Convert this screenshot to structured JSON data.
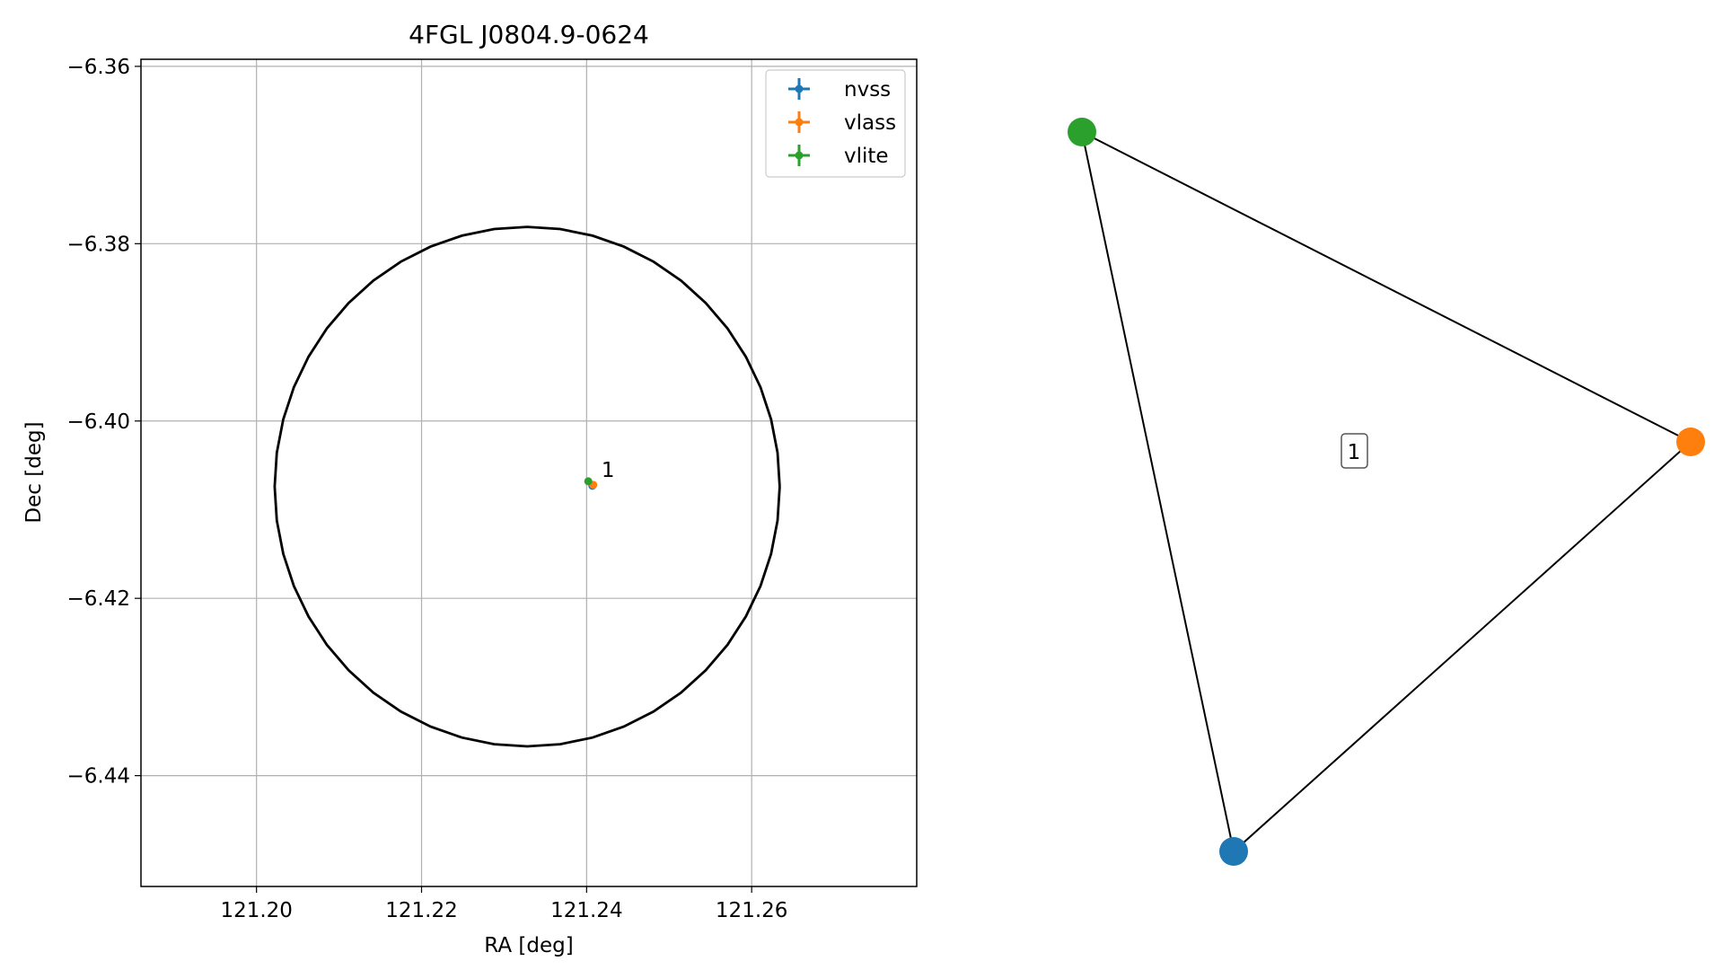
{
  "chart_data": [
    {
      "type": "scatter",
      "title": "4FGL J0804.9-0624",
      "xlabel": "RA [deg]",
      "ylabel": "Dec [deg]",
      "xlim": [
        121.186,
        121.28
      ],
      "ylim": [
        -6.4525,
        -6.3592
      ],
      "xticks": [
        121.2,
        121.22,
        121.24,
        121.26
      ],
      "xtick_labels": [
        "121.20",
        "121.22",
        "121.24",
        "121.26"
      ],
      "yticks": [
        -6.36,
        -6.38,
        -6.4,
        -6.42,
        -6.44
      ],
      "ytick_labels": [
        "−6.36",
        "−6.38",
        "−6.40",
        "−6.42",
        "−6.44"
      ],
      "grid": true,
      "legend_position": "top-right",
      "series": [
        {
          "name": "nvss",
          "color": "#1f77b4",
          "x": [
            121.2407
          ],
          "y": [
            -6.4073
          ]
        },
        {
          "name": "vlass",
          "color": "#ff7f0e",
          "x": [
            121.2408
          ],
          "y": [
            -6.4072
          ]
        },
        {
          "name": "vlite",
          "color": "#2ca02c",
          "x": [
            121.2402
          ],
          "y": [
            -6.4068
          ]
        }
      ],
      "annotations": [
        {
          "text": "1",
          "x": 121.2418,
          "y": -6.4059
        }
      ],
      "ellipse": {
        "center": [
          121.2328,
          -6.4074
        ],
        "semi_axis_ra": 0.0306,
        "semi_axis_dec": 0.0293,
        "color": "#000000"
      }
    },
    {
      "type": "graph",
      "nodes": [
        {
          "id": "nvss",
          "color": "#1f77b4"
        },
        {
          "id": "vlass",
          "color": "#ff7f0e"
        },
        {
          "id": "vlite",
          "color": "#2ca02c"
        }
      ],
      "edges": [
        [
          "vlite",
          "vlass"
        ],
        [
          "vlite",
          "nvss"
        ],
        [
          "nvss",
          "vlass"
        ]
      ],
      "cluster_label": "1"
    }
  ]
}
